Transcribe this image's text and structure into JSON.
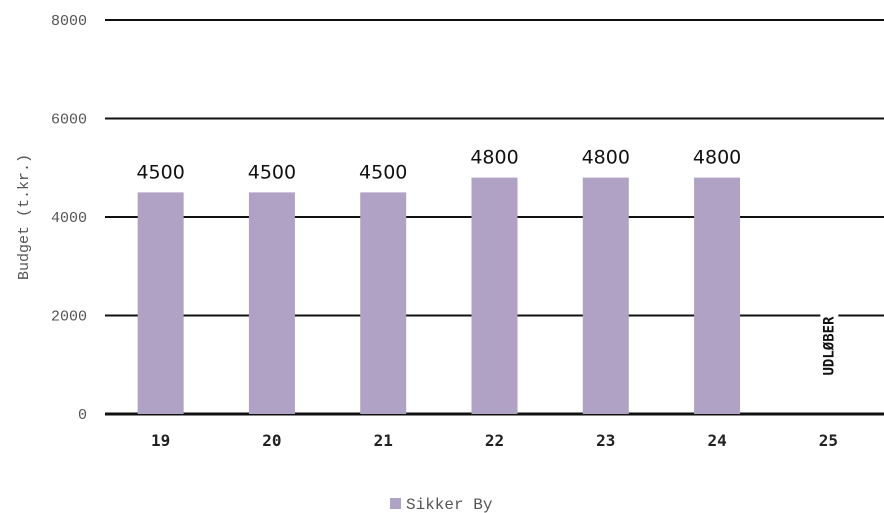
{
  "chart_data": {
    "type": "bar",
    "categories": [
      "19",
      "20",
      "21",
      "22",
      "23",
      "24",
      "25"
    ],
    "series": [
      {
        "name": "Sikker By",
        "values": [
          4500,
          4500,
          4500,
          4800,
          4800,
          4800,
          null
        ]
      }
    ],
    "data_labels": [
      "4500",
      "4500",
      "4500",
      "4800",
      "4800",
      "4800",
      ""
    ],
    "annotation": {
      "category": "25",
      "text": "UDLØBER"
    },
    "ylabel": "Budget (t.kr.)",
    "xlabel": "",
    "ylim": [
      0,
      8000
    ],
    "yticks": [
      0,
      2000,
      4000,
      6000,
      8000
    ],
    "grid": true,
    "legend_position": "bottom",
    "colors": {
      "bar": "#b0a2c5",
      "grid": "#111111"
    }
  }
}
